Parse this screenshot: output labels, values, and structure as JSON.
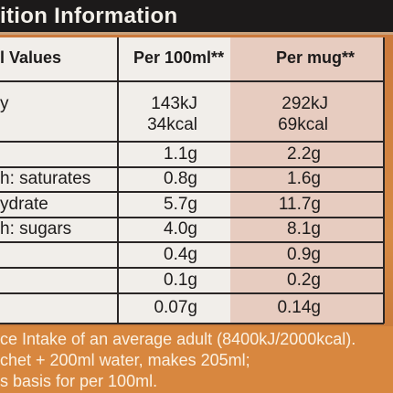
{
  "header": {
    "title": "ition Information"
  },
  "columns": {
    "name": "l Values",
    "per100": "Per 100ml**",
    "permug": "Per mug**"
  },
  "rows": [
    {
      "label": "y",
      "per100": "143kJ",
      "permug": "292kJ"
    },
    {
      "label": "",
      "per100": "34kcal",
      "permug": "69kcal"
    },
    {
      "label": "",
      "per100": "1.1g",
      "permug": "2.2g"
    },
    {
      "label": "h: saturates",
      "per100": "0.8g",
      "permug": "1.6g"
    },
    {
      "label": "ydrate",
      "per100": "5.7g",
      "permug": "11.7g"
    },
    {
      "label": "h: sugars",
      "per100": "4.0g",
      "permug": "8.1g"
    },
    {
      "label": "",
      "per100": "0.4g",
      "permug": "0.9g"
    },
    {
      "label": "",
      "per100": "0.1g",
      "permug": "0.2g"
    },
    {
      "label": "",
      "per100": "0.07g",
      "permug": "0.14g"
    }
  ],
  "footer": {
    "line1": "ce Intake of an average adult (8400kJ/2000kcal).",
    "line2": "chet + 200ml water, makes 205ml;",
    "line3": "s basis for per 100ml."
  },
  "colors": {
    "header_band": "#1c1a1a",
    "table_bg": "#f1eeea",
    "mug_column_bg": "#e7ccc0",
    "footer_bg": "#d8873f"
  }
}
